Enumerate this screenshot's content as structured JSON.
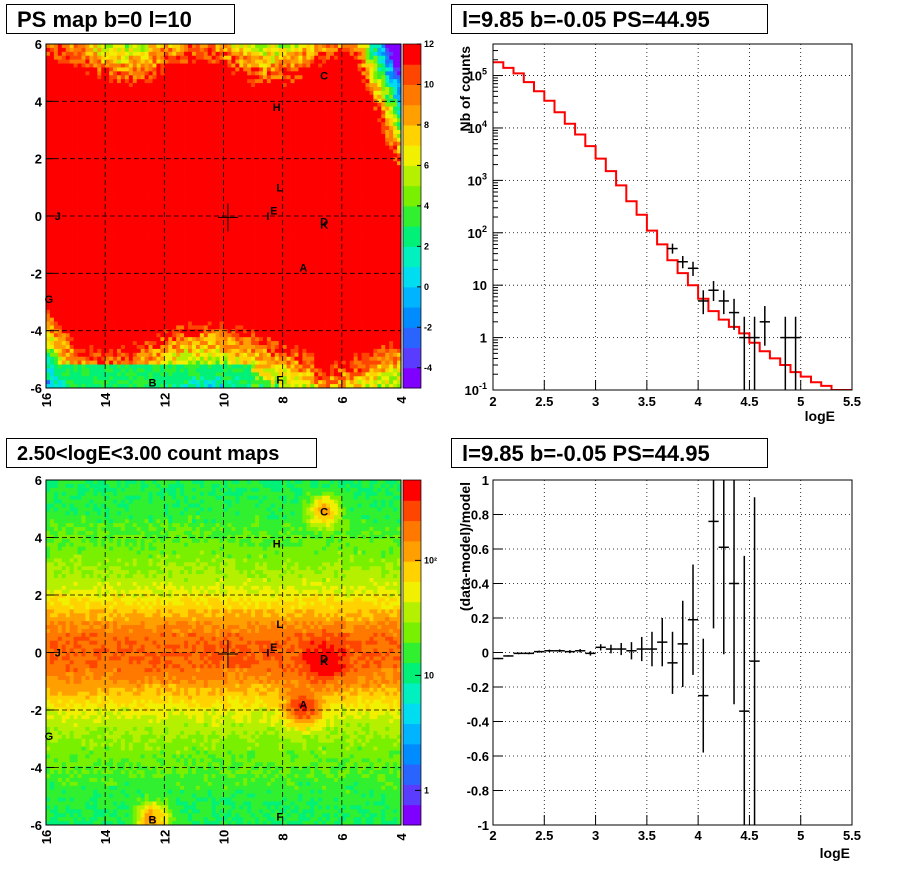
{
  "panels": {
    "ps_map": {
      "title": "PS map b=0 l=10",
      "xticks": [
        "16",
        "14",
        "12",
        "10",
        "8",
        "6",
        "4"
      ],
      "yticks": [
        "6",
        "4",
        "2",
        "0",
        "-2",
        "-4",
        "-6"
      ],
      "zticks": [
        "12",
        "10",
        "8",
        "6",
        "4",
        "2",
        "0",
        "-2",
        "-4"
      ]
    },
    "counts_spec": {
      "title": "l=9.85 b=-0.05 PS=44.95",
      "xlabel": "logE",
      "ylabel": "Nb of counts",
      "xticks": [
        "2",
        "2.5",
        "3",
        "3.5",
        "4",
        "4.5",
        "5",
        "5.5"
      ]
    },
    "count_map": {
      "title": "2.50<logE<3.00 count maps",
      "xticks": [
        "16",
        "14",
        "12",
        "10",
        "8",
        "6",
        "4"
      ],
      "yticks": [
        "6",
        "4",
        "2",
        "0",
        "-2",
        "-4",
        "-6"
      ],
      "zticks": [
        "10²",
        "10",
        "1"
      ]
    },
    "residuals": {
      "title": "l=9.85 b=-0.05 PS=44.95",
      "xlabel": "logE",
      "ylabel": "(data-model)/model",
      "xticks": [
        "2",
        "2.5",
        "3",
        "3.5",
        "4",
        "4.5",
        "5",
        "5.5"
      ],
      "yticks": [
        "1",
        "0.8",
        "0.6",
        "0.4",
        "0.2",
        "0",
        "-0.2",
        "-0.4",
        "-0.6",
        "-0.8",
        "-1"
      ]
    }
  },
  "source_labels": [
    {
      "name": "C",
      "l": 6.6,
      "b": 4.9
    },
    {
      "name": "H",
      "l": 8.2,
      "b": 3.8
    },
    {
      "name": "L",
      "l": 8.1,
      "b": 1.0
    },
    {
      "name": "E",
      "l": 8.3,
      "b": 0.2
    },
    {
      "name": "I",
      "l": 8.5,
      "b": 0.0
    },
    {
      "name": "D",
      "l": 6.6,
      "b": -0.2
    },
    {
      "name": "K",
      "l": 6.6,
      "b": -0.3
    },
    {
      "name": "J",
      "l": 15.6,
      "b": 0.0
    },
    {
      "name": "A",
      "l": 7.3,
      "b": -1.8
    },
    {
      "name": "G",
      "l": 15.9,
      "b": -2.9
    },
    {
      "name": "B",
      "l": 12.4,
      "b": -5.8
    },
    {
      "name": "F",
      "l": 8.1,
      "b": -5.7
    }
  ],
  "chart_data": [
    {
      "type": "heatmap",
      "title": "PS map b=0 l=10",
      "xlim": [
        16,
        4
      ],
      "ylim": [
        -6,
        6
      ],
      "zlim": [
        -5,
        12
      ],
      "description_values": "saturated (>=12) across |b| < ~4.5; drops to 4-8 at b > 5 and to 0-4 at b < -4.5"
    },
    {
      "type": "line",
      "title": "l=9.85 b=-0.05 PS=44.95",
      "xlabel": "logE",
      "ylabel": "Nb of counts",
      "xlim": [
        2,
        5.5
      ],
      "ylim": [
        0.1,
        400000
      ],
      "yscale": "log",
      "series": [
        {
          "name": "model",
          "color": "#ff0000",
          "x": [
            2.0,
            2.1,
            2.2,
            2.3,
            2.4,
            2.5,
            2.6,
            2.7,
            2.8,
            2.9,
            3.0,
            3.1,
            3.2,
            3.3,
            3.4,
            3.5,
            3.6,
            3.7,
            3.8,
            3.9,
            4.0,
            4.1,
            4.2,
            4.3,
            4.4,
            4.5,
            4.6,
            4.7,
            4.8,
            4.9,
            5.0,
            5.1,
            5.2,
            5.3,
            5.4
          ],
          "y": [
            180000,
            140000,
            110000,
            75000,
            50000,
            33000,
            20000,
            12000,
            7500,
            4500,
            2600,
            1500,
            800,
            400,
            220,
            110,
            60,
            30,
            17,
            10,
            5.5,
            3.2,
            2.2,
            1.6,
            1.2,
            0.8,
            0.55,
            0.4,
            0.3,
            0.22,
            0.18,
            0.14,
            0.12,
            0.1,
            0.1
          ]
        },
        {
          "name": "data",
          "color": "#000000",
          "points": [
            {
              "x": 3.75,
              "y": 50,
              "ylo": 40,
              "yhi": 62
            },
            {
              "x": 3.85,
              "y": 28,
              "ylo": 21,
              "yhi": 36
            },
            {
              "x": 3.95,
              "y": 21,
              "ylo": 15,
              "yhi": 28
            },
            {
              "x": 4.05,
              "y": 5,
              "ylo": 2.8,
              "yhi": 8
            },
            {
              "x": 4.15,
              "y": 8,
              "ylo": 5,
              "yhi": 12
            },
            {
              "x": 4.25,
              "y": 5,
              "ylo": 2.8,
              "yhi": 8
            },
            {
              "x": 4.35,
              "y": 3,
              "ylo": 1.4,
              "yhi": 5.5
            },
            {
              "x": 4.45,
              "y": 1,
              "ylo": 0.1,
              "yhi": 2.5
            },
            {
              "x": 4.55,
              "y": 1,
              "ylo": 0.1,
              "yhi": 2.5
            },
            {
              "x": 4.65,
              "y": 2,
              "ylo": 0.7,
              "yhi": 4
            },
            {
              "x": 4.85,
              "y": 1,
              "ylo": 0.1,
              "yhi": 2.5
            },
            {
              "x": 4.95,
              "y": 1,
              "ylo": 0.1,
              "yhi": 2.5
            }
          ]
        }
      ]
    },
    {
      "type": "heatmap",
      "title": "2.50<logE<3.00 count maps",
      "xlim": [
        16,
        4
      ],
      "ylim": [
        -6,
        6
      ],
      "zscale": "log",
      "zlim": [
        0.5,
        500
      ],
      "description_values": "peak counts along b=0 (~100-300) with hotspots near sources A, C, D, B; background ~10-30 at high |b|"
    },
    {
      "type": "scatter",
      "title": "l=9.85 b=-0.05 PS=44.95",
      "xlabel": "logE",
      "ylabel": "(data-model)/model",
      "xlim": [
        2,
        5.5
      ],
      "ylim": [
        -1,
        1
      ],
      "points": [
        {
          "x": 2.05,
          "y": -0.035,
          "err": 0.004
        },
        {
          "x": 2.15,
          "y": -0.02,
          "err": 0.004
        },
        {
          "x": 2.25,
          "y": -0.005,
          "err": 0.005
        },
        {
          "x": 2.35,
          "y": -0.005,
          "err": 0.005
        },
        {
          "x": 2.45,
          "y": 0.005,
          "err": 0.006
        },
        {
          "x": 2.55,
          "y": 0.01,
          "err": 0.007
        },
        {
          "x": 2.65,
          "y": 0.01,
          "err": 0.008
        },
        {
          "x": 2.75,
          "y": 0.005,
          "err": 0.009
        },
        {
          "x": 2.85,
          "y": 0.01,
          "err": 0.01
        },
        {
          "x": 2.95,
          "y": -0.005,
          "err": 0.013
        },
        {
          "x": 3.05,
          "y": 0.03,
          "err": 0.018
        },
        {
          "x": 3.15,
          "y": 0.02,
          "err": 0.025
        },
        {
          "x": 3.25,
          "y": 0.02,
          "err": 0.035
        },
        {
          "x": 3.35,
          "y": 0.01,
          "err": 0.05
        },
        {
          "x": 3.45,
          "y": 0.02,
          "err": 0.07
        },
        {
          "x": 3.55,
          "y": 0.02,
          "err": 0.1
        },
        {
          "x": 3.65,
          "y": 0.06,
          "err": 0.14
        },
        {
          "x": 3.75,
          "y": -0.06,
          "err": 0.18
        },
        {
          "x": 3.85,
          "y": 0.05,
          "err": 0.25
        },
        {
          "x": 3.95,
          "y": 0.19,
          "err": 0.32
        },
        {
          "x": 4.05,
          "y": -0.25,
          "err": 0.33
        },
        {
          "x": 4.15,
          "y": 0.76,
          "err": 0.62
        },
        {
          "x": 4.25,
          "y": 0.61,
          "err": 0.62
        },
        {
          "x": 4.35,
          "y": 0.4,
          "err": 0.7
        },
        {
          "x": 4.45,
          "y": -0.34,
          "err": 0.9
        },
        {
          "x": 4.55,
          "y": -0.05,
          "err": 0.95
        }
      ]
    }
  ]
}
